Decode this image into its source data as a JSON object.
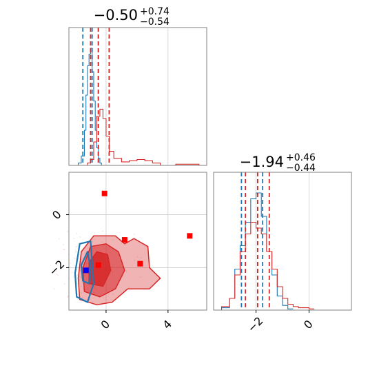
{
  "colors": {
    "blue": "#1f77b4",
    "red": "#d62728",
    "marker_red": "#ff0000",
    "marker_blue": "#0000ff",
    "grid": "#cccccc",
    "frame": "#808080"
  },
  "titles": {
    "x": {
      "value": "−0.50",
      "plus": "+0.74",
      "minus": "−0.54"
    },
    "y": {
      "value": "−1.94",
      "plus": "+0.46",
      "minus": "−0.44"
    }
  },
  "chart_data": [
    {
      "panel": "marginal-x",
      "type": "histogram",
      "xlim": [
        -2.4,
        6.5
      ],
      "grid": true,
      "series": [
        {
          "color": "blue",
          "x": [
            -1.8,
            -1.6,
            -1.4,
            -1.3,
            -1.2,
            -1.1,
            -1.0,
            -0.9,
            -0.8,
            -0.7,
            -0.6,
            -0.5,
            -0.4,
            -0.3
          ],
          "density": [
            0.02,
            0.08,
            0.3,
            0.6,
            0.85,
            0.95,
            1.0,
            0.8,
            0.55,
            0.3,
            0.15,
            0.06,
            0.02,
            0.0
          ],
          "quantile_lines": [
            -1.5,
            -0.9,
            -0.5
          ]
        },
        {
          "color": "red",
          "x": [
            -1.2,
            -1.0,
            -0.8,
            -0.6,
            -0.4,
            -0.2,
            0.0,
            0.2,
            0.5,
            1.0,
            1.5,
            2.0,
            2.5,
            3.0,
            3.5,
            4.0,
            4.5,
            5.0,
            5.5,
            6.0
          ],
          "density": [
            0.02,
            0.05,
            0.2,
            0.42,
            0.48,
            0.4,
            0.25,
            0.12,
            0.06,
            0.03,
            0.04,
            0.05,
            0.04,
            0.02,
            0.0,
            0.0,
            0.01,
            0.01,
            0.01,
            0.0
          ],
          "quantile_lines": [
            -1.0,
            -0.5,
            0.2
          ]
        }
      ]
    },
    {
      "panel": "joint",
      "type": "scatter",
      "xlim": [
        -2.4,
        6.5
      ],
      "ylim": [
        -3.6,
        1.6
      ],
      "x_ticks": [
        0,
        4
      ],
      "x_tick_labels": [
        "0",
        "4"
      ],
      "y_ticks": [
        0,
        -2
      ],
      "y_tick_labels": [
        "0",
        "−2"
      ],
      "grid": true,
      "red_markers": [
        [
          -0.1,
          0.8
        ],
        [
          1.2,
          -0.95
        ],
        [
          2.2,
          -1.85
        ],
        [
          5.4,
          -0.8
        ],
        [
          -0.5,
          -1.9
        ]
      ],
      "blue_markers": [
        [
          -1.3,
          -2.1
        ]
      ],
      "contours": [
        {
          "color": "red",
          "level": "outer",
          "points": [
            [
              -1.7,
              -3.2
            ],
            [
              -1.8,
              -2.4
            ],
            [
              -1.6,
              -1.4
            ],
            [
              -0.8,
              -0.8
            ],
            [
              0.6,
              -0.8
            ],
            [
              1.2,
              -1.1
            ],
            [
              1.8,
              -0.9
            ],
            [
              2.7,
              -1.2
            ],
            [
              2.8,
              -2.0
            ],
            [
              3.5,
              -2.4
            ],
            [
              2.8,
              -2.8
            ],
            [
              1.4,
              -2.8
            ],
            [
              0.4,
              -3.3
            ],
            [
              -0.6,
              -3.4
            ]
          ]
        },
        {
          "color": "red",
          "level": "middle",
          "points": [
            [
              -1.4,
              -2.9
            ],
            [
              -1.5,
              -2.0
            ],
            [
              -1.0,
              -1.2
            ],
            [
              0.0,
              -1.1
            ],
            [
              0.8,
              -1.4
            ],
            [
              1.2,
              -2.1
            ],
            [
              0.6,
              -2.8
            ],
            [
              -0.4,
              -3.1
            ]
          ]
        },
        {
          "color": "red",
          "level": "inner",
          "points": [
            [
              -1.1,
              -2.6
            ],
            [
              -1.1,
              -1.8
            ],
            [
              -0.6,
              -1.4
            ],
            [
              0.1,
              -1.5
            ],
            [
              0.3,
              -2.1
            ],
            [
              -0.2,
              -2.7
            ]
          ]
        },
        {
          "color": "blue",
          "level": "outer",
          "points": [
            [
              -1.9,
              -3.1
            ],
            [
              -2.0,
              -2.2
            ],
            [
              -1.7,
              -1.1
            ],
            [
              -1.0,
              -1.0
            ],
            [
              -0.9,
              -1.8
            ],
            [
              -0.8,
              -2.6
            ],
            [
              -1.2,
              -3.3
            ]
          ]
        },
        {
          "color": "blue",
          "level": "inner",
          "points": [
            [
              -1.5,
              -2.5
            ],
            [
              -1.6,
              -1.9
            ],
            [
              -1.2,
              -1.4
            ],
            [
              -1.0,
              -2.0
            ],
            [
              -1.1,
              -2.6
            ]
          ]
        }
      ]
    },
    {
      "panel": "marginal-y",
      "type": "histogram",
      "xlim": [
        -3.6,
        1.6
      ],
      "x_ticks": [
        -2,
        0
      ],
      "x_tick_labels": [
        "−2",
        "0"
      ],
      "grid": true,
      "series": [
        {
          "color": "blue",
          "x": [
            -3.3,
            -3.0,
            -2.8,
            -2.6,
            -2.4,
            -2.2,
            -2.0,
            -1.8,
            -1.6,
            -1.4,
            -1.2,
            -1.0,
            -0.8
          ],
          "density": [
            0.02,
            0.1,
            0.35,
            0.55,
            0.75,
            0.95,
            1.0,
            0.8,
            0.5,
            0.3,
            0.12,
            0.04,
            0.01
          ],
          "quantile_lines": [
            -2.55,
            -1.75
          ]
        },
        {
          "color": "red",
          "x": [
            -3.3,
            -3.0,
            -2.8,
            -2.6,
            -2.4,
            -2.2,
            -2.0,
            -1.8,
            -1.6,
            -1.4,
            -1.2,
            -1.0,
            -0.8,
            -0.6,
            -0.4,
            -0.2,
            0.0
          ],
          "density": [
            0.03,
            0.1,
            0.3,
            0.5,
            0.65,
            0.75,
            0.7,
            0.65,
            0.5,
            0.35,
            0.2,
            0.1,
            0.05,
            0.03,
            0.02,
            0.02,
            0.01
          ],
          "quantile_lines": [
            -2.4,
            -1.94,
            -1.5
          ]
        }
      ]
    }
  ]
}
